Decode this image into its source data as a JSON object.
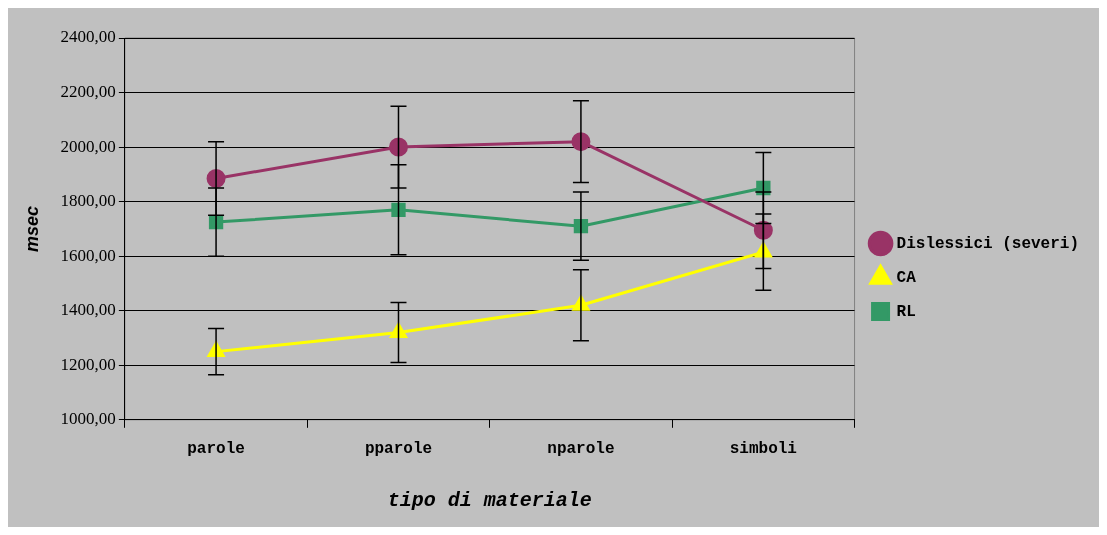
{
  "chart_data": {
    "type": "line",
    "xlabel": "tipo di materiale",
    "ylabel": "msec",
    "categories": [
      "parole",
      "pparole",
      "nparole",
      "simboli"
    ],
    "series": [
      {
        "name": "Dislessici (severi)",
        "color": "#993366",
        "marker": "circle",
        "values": [
          1885,
          2000,
          2020,
          1695
        ],
        "errors": [
          135,
          150,
          150,
          140
        ]
      },
      {
        "name": "CA",
        "color": "#ffff00",
        "marker": "triangle",
        "values": [
          1250,
          1320,
          1420,
          1615
        ],
        "errors": [
          85,
          110,
          130,
          140
        ]
      },
      {
        "name": "RL",
        "color": "#339966",
        "marker": "square",
        "values": [
          1725,
          1770,
          1710,
          1850
        ],
        "errors": [
          125,
          165,
          125,
          130
        ]
      }
    ],
    "ylim": [
      1000,
      2400
    ],
    "yticks": [
      {
        "value": 1000,
        "label": "1000,00"
      },
      {
        "value": 1200,
        "label": "1200,00"
      },
      {
        "value": 1400,
        "label": "1400,00"
      },
      {
        "value": 1600,
        "label": "1600,00"
      },
      {
        "value": 1800,
        "label": "1800,00"
      },
      {
        "value": 2000,
        "label": "2000,00"
      },
      {
        "value": 2200,
        "label": "2200,00"
      },
      {
        "value": 2400,
        "label": "2400,00"
      }
    ],
    "grid": "y",
    "legend": "right"
  }
}
